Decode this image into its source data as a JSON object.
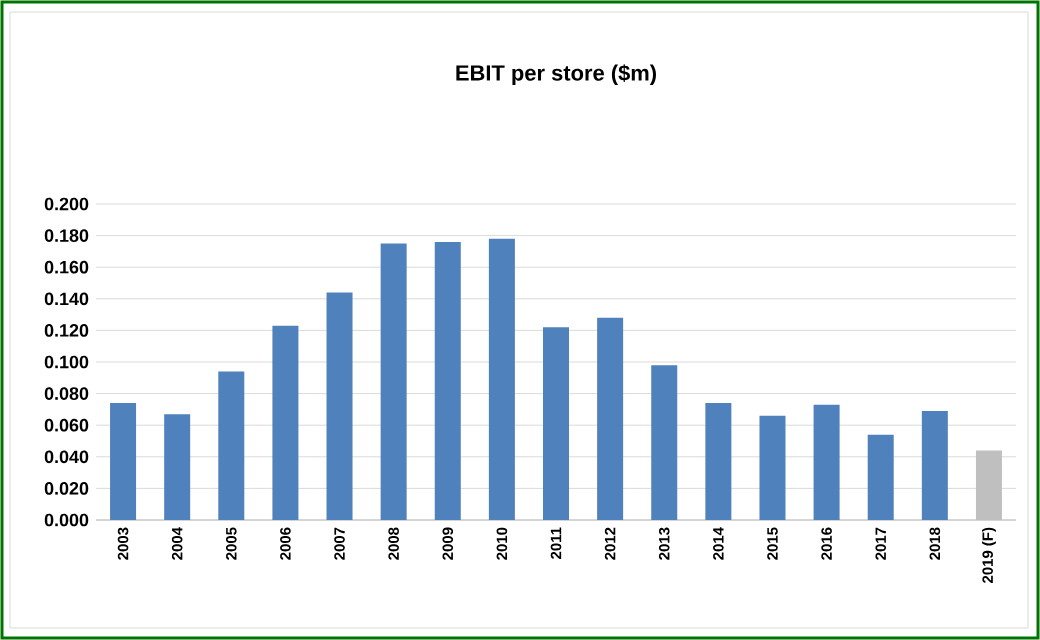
{
  "chart_data": {
    "type": "bar",
    "title": "EBIT per store ($m)",
    "categories": [
      "2003",
      "2004",
      "2005",
      "2006",
      "2007",
      "2008",
      "2009",
      "2010",
      "2011",
      "2012",
      "2013",
      "2014",
      "2015",
      "2016",
      "2017",
      "2018",
      "2019 (F)"
    ],
    "values": [
      0.074,
      0.067,
      0.094,
      0.123,
      0.144,
      0.175,
      0.176,
      0.178,
      0.122,
      0.128,
      0.098,
      0.074,
      0.066,
      0.073,
      0.054,
      0.069,
      0.044
    ],
    "colors": [
      "#4f81bd",
      "#4f81bd",
      "#4f81bd",
      "#4f81bd",
      "#4f81bd",
      "#4f81bd",
      "#4f81bd",
      "#4f81bd",
      "#4f81bd",
      "#4f81bd",
      "#4f81bd",
      "#4f81bd",
      "#4f81bd",
      "#4f81bd",
      "#4f81bd",
      "#4f81bd",
      "#bfbfbf"
    ],
    "ylim": [
      0,
      0.2
    ],
    "yticks": [
      {
        "value": 0,
        "label": "0.000"
      },
      {
        "value": 0.02,
        "label": "0.020"
      },
      {
        "value": 0.04,
        "label": "0.040"
      },
      {
        "value": 0.06,
        "label": "0.060"
      },
      {
        "value": 0.08,
        "label": "0.080"
      },
      {
        "value": 0.1,
        "label": "0.100"
      },
      {
        "value": 0.12,
        "label": "0.120"
      },
      {
        "value": 0.14,
        "label": "0.140"
      },
      {
        "value": 0.16,
        "label": "0.160"
      },
      {
        "value": 0.18,
        "label": "0.180"
      },
      {
        "value": 0.2,
        "label": "0.200"
      }
    ],
    "grid": "y"
  }
}
